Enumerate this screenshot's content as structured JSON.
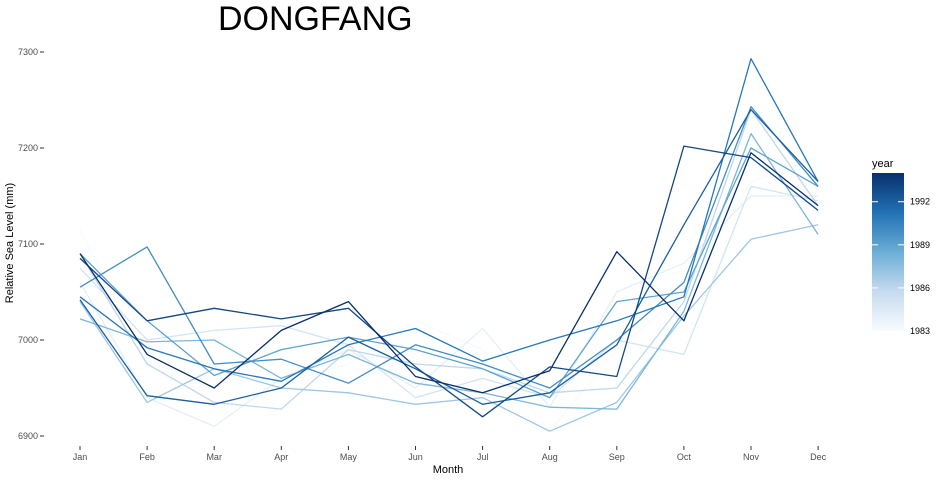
{
  "chart_data": {
    "type": "line",
    "title": "DONGFANG",
    "xlabel": "Month",
    "ylabel": "Relative Sea Level (mm)",
    "categories": [
      "Jan",
      "Feb",
      "Mar",
      "Apr",
      "May",
      "Jun",
      "Jul",
      "Aug",
      "Sep",
      "Oct",
      "Nov",
      "Dec"
    ],
    "y_ticks": [
      6900,
      7000,
      7100,
      7200,
      7300
    ],
    "ylim": [
      6890,
      7310
    ],
    "grid": false,
    "legend": {
      "title": "year",
      "placement": "right",
      "type": "continuous",
      "range": [
        1983,
        1994
      ],
      "ticks": [
        1983,
        1986,
        1989,
        1992
      ],
      "color_low": "#f7fbff",
      "color_high": "#08306b"
    },
    "series": [
      {
        "year": 1983,
        "values": [
          7115,
          6975,
          6960,
          6955,
          6975,
          7020,
          6990,
          6905,
          6990,
          7050,
          7165,
          7190
        ]
      },
      {
        "year": 1984,
        "values": [
          7060,
          6940,
          6910,
          6960,
          6990,
          6950,
          7012,
          6930,
          7050,
          7080,
          7150,
          7150
        ]
      },
      {
        "year": 1985,
        "values": [
          7075,
          7000,
          7010,
          7015,
          6995,
          6940,
          6960,
          6940,
          7000,
          6985,
          7160,
          7145
        ]
      },
      {
        "year": 1986,
        "values": [
          7090,
          6975,
          6935,
          6928,
          6990,
          6975,
          6970,
          6945,
          6950,
          7040,
          7240,
          7140
        ]
      },
      {
        "year": 1987,
        "values": [
          7040,
          6935,
          6970,
          6950,
          6945,
          6933,
          6940,
          6905,
          6935,
          7025,
          7105,
          7120
        ]
      },
      {
        "year": 1988,
        "values": [
          7022,
          6998,
          7000,
          6960,
          6985,
          6955,
          6945,
          6930,
          6928,
          7030,
          7215,
          7110
        ]
      },
      {
        "year": 1989,
        "values": [
          7090,
          7020,
          6963,
          6990,
          7003,
          6990,
          6970,
          6940,
          7040,
          7050,
          7200,
          7160
        ]
      },
      {
        "year": 1990,
        "values": [
          7055,
          7097,
          6975,
          6980,
          6955,
          6995,
          6975,
          6950,
          7000,
          7060,
          7243,
          7160
        ]
      },
      {
        "year": 1991,
        "values": [
          7045,
          6992,
          6970,
          6957,
          6995,
          7012,
          6978,
          7000,
          7020,
          7045,
          7293,
          7165
        ]
      },
      {
        "year": 1992,
        "values": [
          7042,
          6942,
          6933,
          6950,
          7003,
          6970,
          6933,
          6945,
          6995,
          7120,
          7240,
          7165
        ]
      },
      {
        "year": 1993,
        "values": [
          7085,
          7020,
          7033,
          7022,
          7033,
          6972,
          6920,
          6972,
          6962,
          7202,
          7190,
          7135
        ]
      },
      {
        "year": 1994,
        "values": [
          7090,
          6985,
          6950,
          7010,
          7040,
          6962,
          6945,
          6968,
          7092,
          7020,
          7195,
          7140
        ]
      }
    ]
  }
}
